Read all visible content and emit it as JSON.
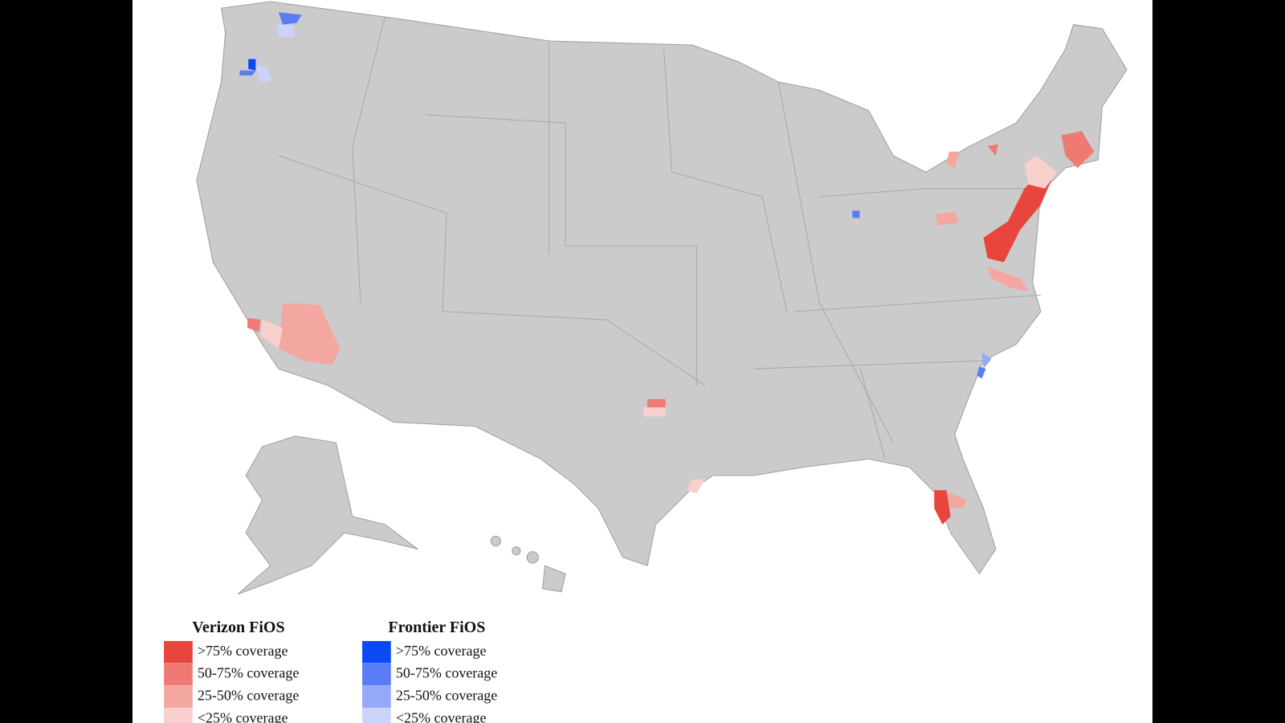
{
  "legend": {
    "groups": [
      {
        "title": "Verizon FiOS",
        "items": [
          {
            "label": ">75% coverage",
            "color": "#e8453c"
          },
          {
            "label": "50-75% coverage",
            "color": "#ee7a73"
          },
          {
            "label": "25-50% coverage",
            "color": "#f4a6a1"
          },
          {
            "label": "<25% coverage",
            "color": "#f8d0ce"
          }
        ]
      },
      {
        "title": "Frontier FiOS",
        "items": [
          {
            "label": ">75% coverage",
            "color": "#0a4af5"
          },
          {
            "label": "50-75% coverage",
            "color": "#5a7cf7"
          },
          {
            "label": "25-50% coverage",
            "color": "#96a8f8"
          },
          {
            "label": "<25% coverage",
            "color": "#cbd3fb"
          }
        ]
      }
    ]
  }
}
